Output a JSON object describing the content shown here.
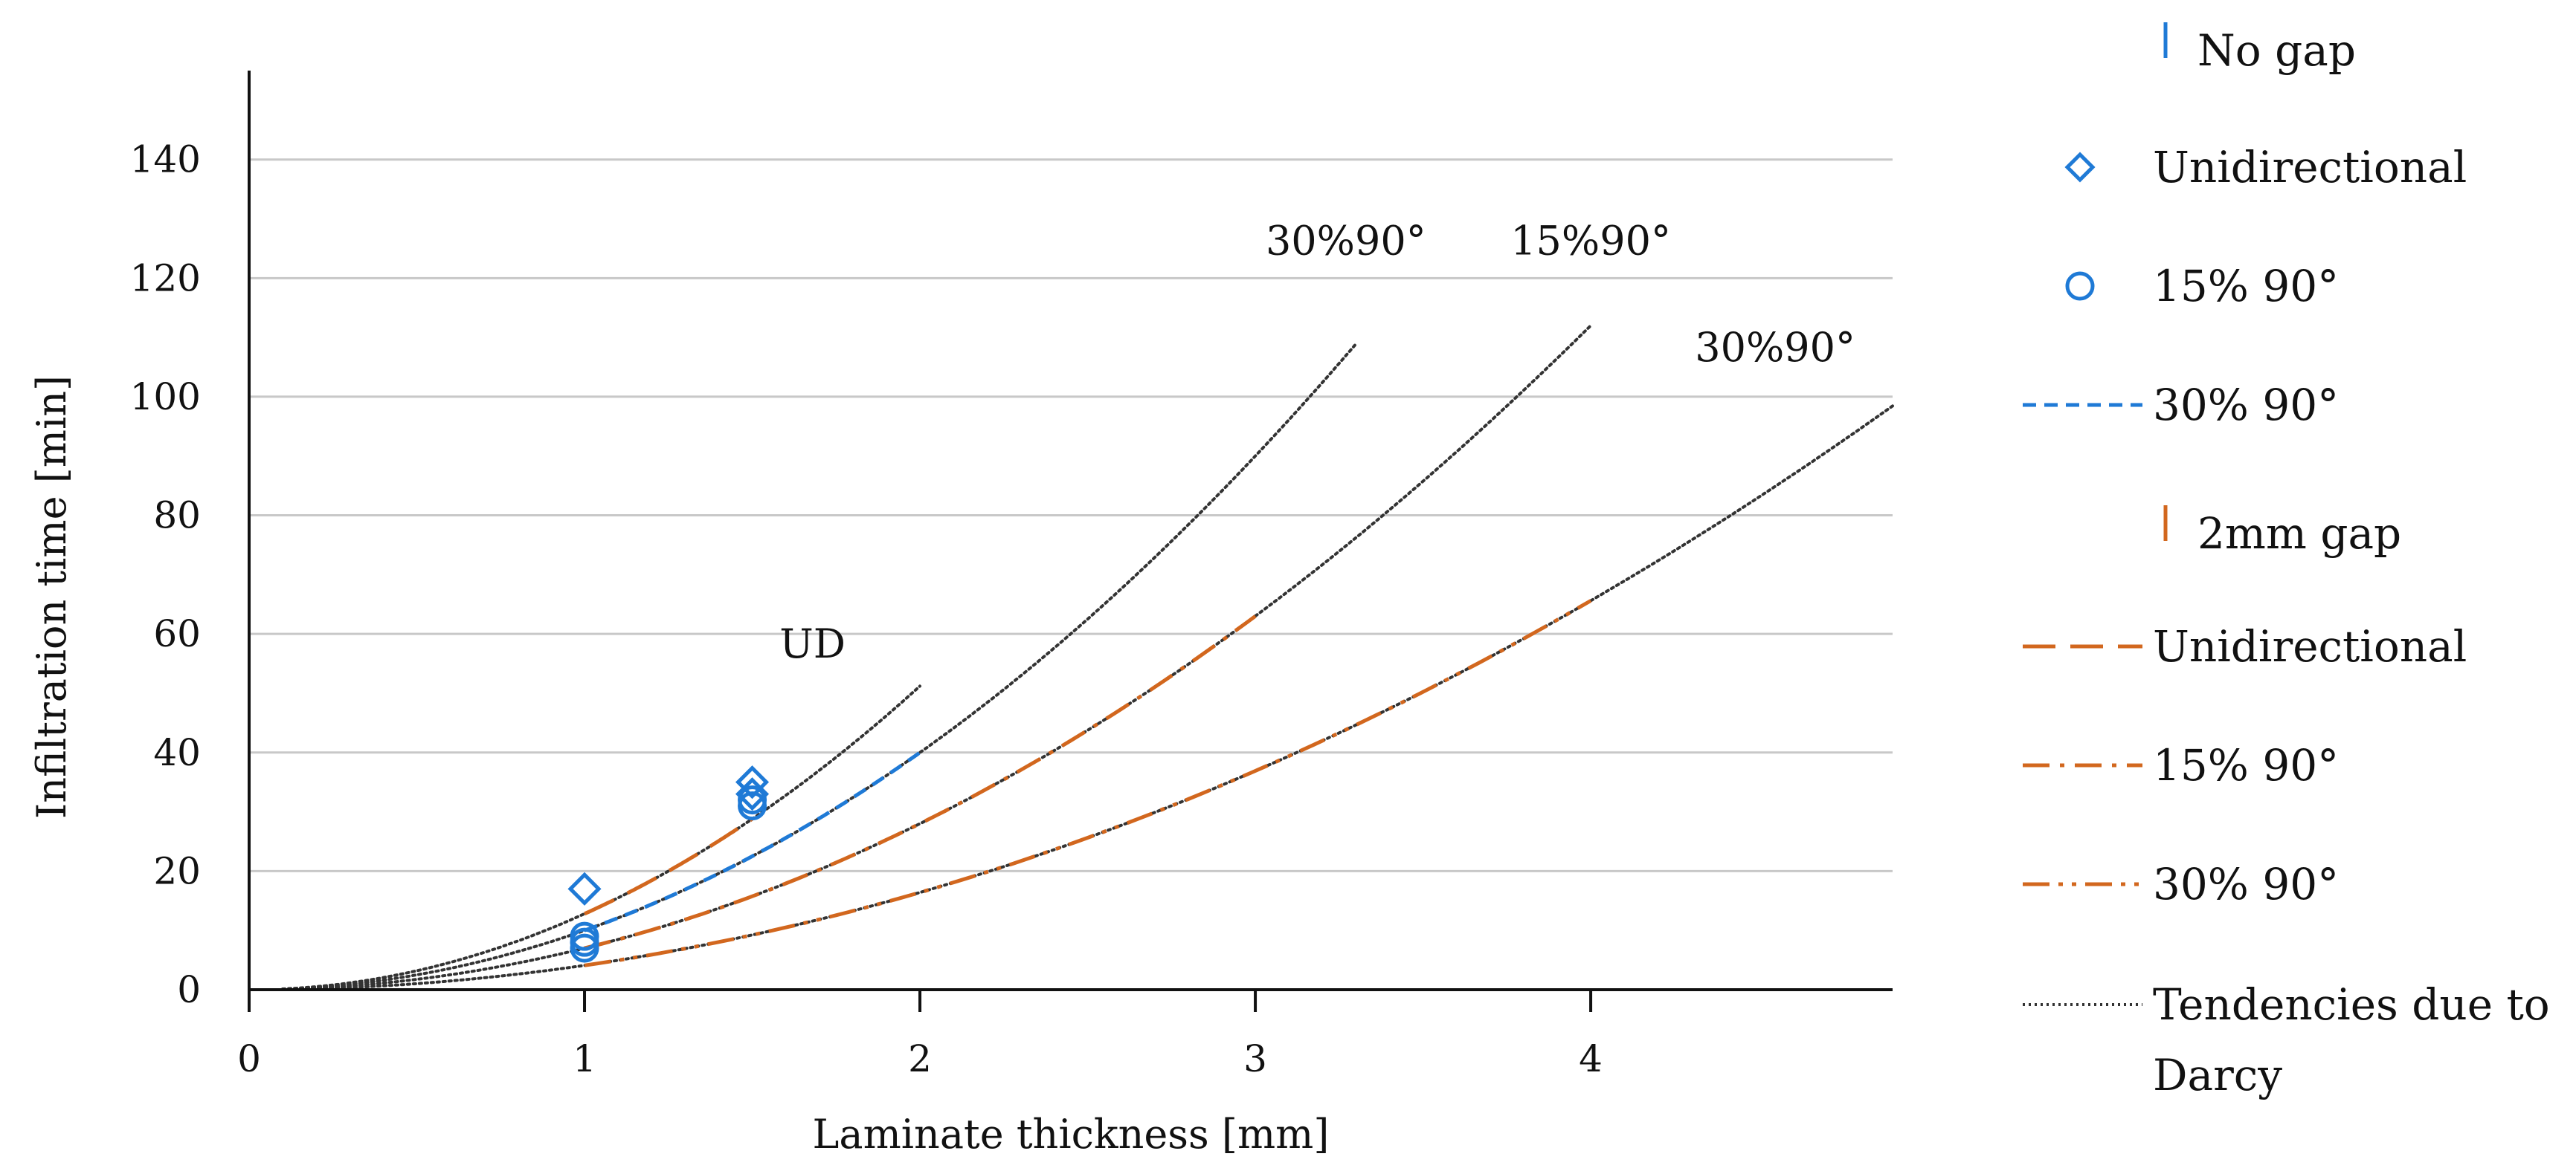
{
  "chart_data": {
    "type": "line",
    "title": "",
    "xlabel": "Laminate thickness [mm]",
    "ylabel": "Infiltration time [min]",
    "xlim": [
      0,
      4.9
    ],
    "ylim": [
      0,
      155
    ],
    "xticks": [
      0,
      1,
      2,
      3,
      4
    ],
    "yticks": [
      0,
      20,
      40,
      60,
      80,
      100,
      120,
      140
    ],
    "grid": "horizontal",
    "legend_position": "right",
    "colors": {
      "blue": "#1f7ad6",
      "orange": "#d2671e",
      "gray": "#333333"
    },
    "series": [
      {
        "name": "No gap – Unidirectional",
        "kind": "marker",
        "marker": "diamond",
        "color": "#1f7ad6",
        "points": [
          [
            1.0,
            17
          ],
          [
            1.5,
            35
          ],
          [
            1.5,
            33
          ]
        ]
      },
      {
        "name": "No gap – 15% 90°",
        "kind": "marker",
        "marker": "circle",
        "color": "#1f7ad6",
        "points": [
          [
            1.0,
            9
          ],
          [
            1.0,
            8
          ],
          [
            1.0,
            7
          ],
          [
            1.5,
            31
          ],
          [
            1.5,
            32
          ]
        ]
      },
      {
        "name": "No gap – 30% 90°",
        "kind": "line",
        "dash": "dashed",
        "color": "#1f7ad6",
        "x_range": [
          1.0,
          2.0
        ],
        "coef": 10.0
      },
      {
        "name": "2mm gap – Unidirectional",
        "kind": "line",
        "dash": "longdash",
        "color": "#d2671e",
        "x_range": [
          1.0,
          1.5
        ],
        "coef": 12.8
      },
      {
        "name": "2mm gap – 15% 90°",
        "kind": "line",
        "dash": "dashdot",
        "color": "#d2671e",
        "x_range": [
          1.0,
          3.0
        ],
        "coef": 7.0
      },
      {
        "name": "2mm gap – 30% 90°",
        "kind": "line",
        "dash": "dashdotdot",
        "color": "#d2671e",
        "x_range": [
          1.0,
          4.0
        ],
        "coef": 4.1
      },
      {
        "name": "Tendency UD",
        "kind": "trend",
        "color": "#333333",
        "x_range": [
          0.1,
          2.0
        ],
        "coef": 12.8
      },
      {
        "name": "Tendency 30%90° (no gap)",
        "kind": "trend",
        "color": "#333333",
        "x_range": [
          0.1,
          3.3
        ],
        "coef": 10.0
      },
      {
        "name": "Tendency 15%90°",
        "kind": "trend",
        "color": "#333333",
        "x_range": [
          0.1,
          4.0
        ],
        "coef": 7.0
      },
      {
        "name": "Tendency 30%90° (2mm gap)",
        "kind": "trend",
        "color": "#333333",
        "x_range": [
          0.1,
          4.9
        ],
        "coef": 4.1
      }
    ],
    "annotations": [
      {
        "text": "UD",
        "x": 1.68,
        "y": 56
      },
      {
        "text": "30%90°",
        "x": 3.27,
        "y": 124
      },
      {
        "text": "15%90°",
        "x": 4.0,
        "y": 124
      },
      {
        "text": "30%90°",
        "x": 4.55,
        "y": 106
      }
    ],
    "legend": [
      {
        "label": "No gap",
        "symbol": "vbar",
        "color": "#1f7ad6"
      },
      {
        "label": "Unidirectional",
        "symbol": "diamond",
        "color": "#1f7ad6"
      },
      {
        "label": "15% 90°",
        "symbol": "circle",
        "color": "#1f7ad6"
      },
      {
        "label": "30% 90°",
        "symbol": "dashed",
        "color": "#1f7ad6"
      },
      {
        "label": "2mm gap",
        "symbol": "vbar",
        "color": "#d2671e"
      },
      {
        "label": "Unidirectional",
        "symbol": "longdash",
        "color": "#d2671e"
      },
      {
        "label": "15% 90°",
        "symbol": "dashdot",
        "color": "#d2671e"
      },
      {
        "label": "30% 90°",
        "symbol": "dashdotdot",
        "color": "#d2671e"
      },
      {
        "label": "Tendencies due to",
        "label2": "Darcy",
        "symbol": "dotted",
        "color": "#333333"
      }
    ]
  }
}
